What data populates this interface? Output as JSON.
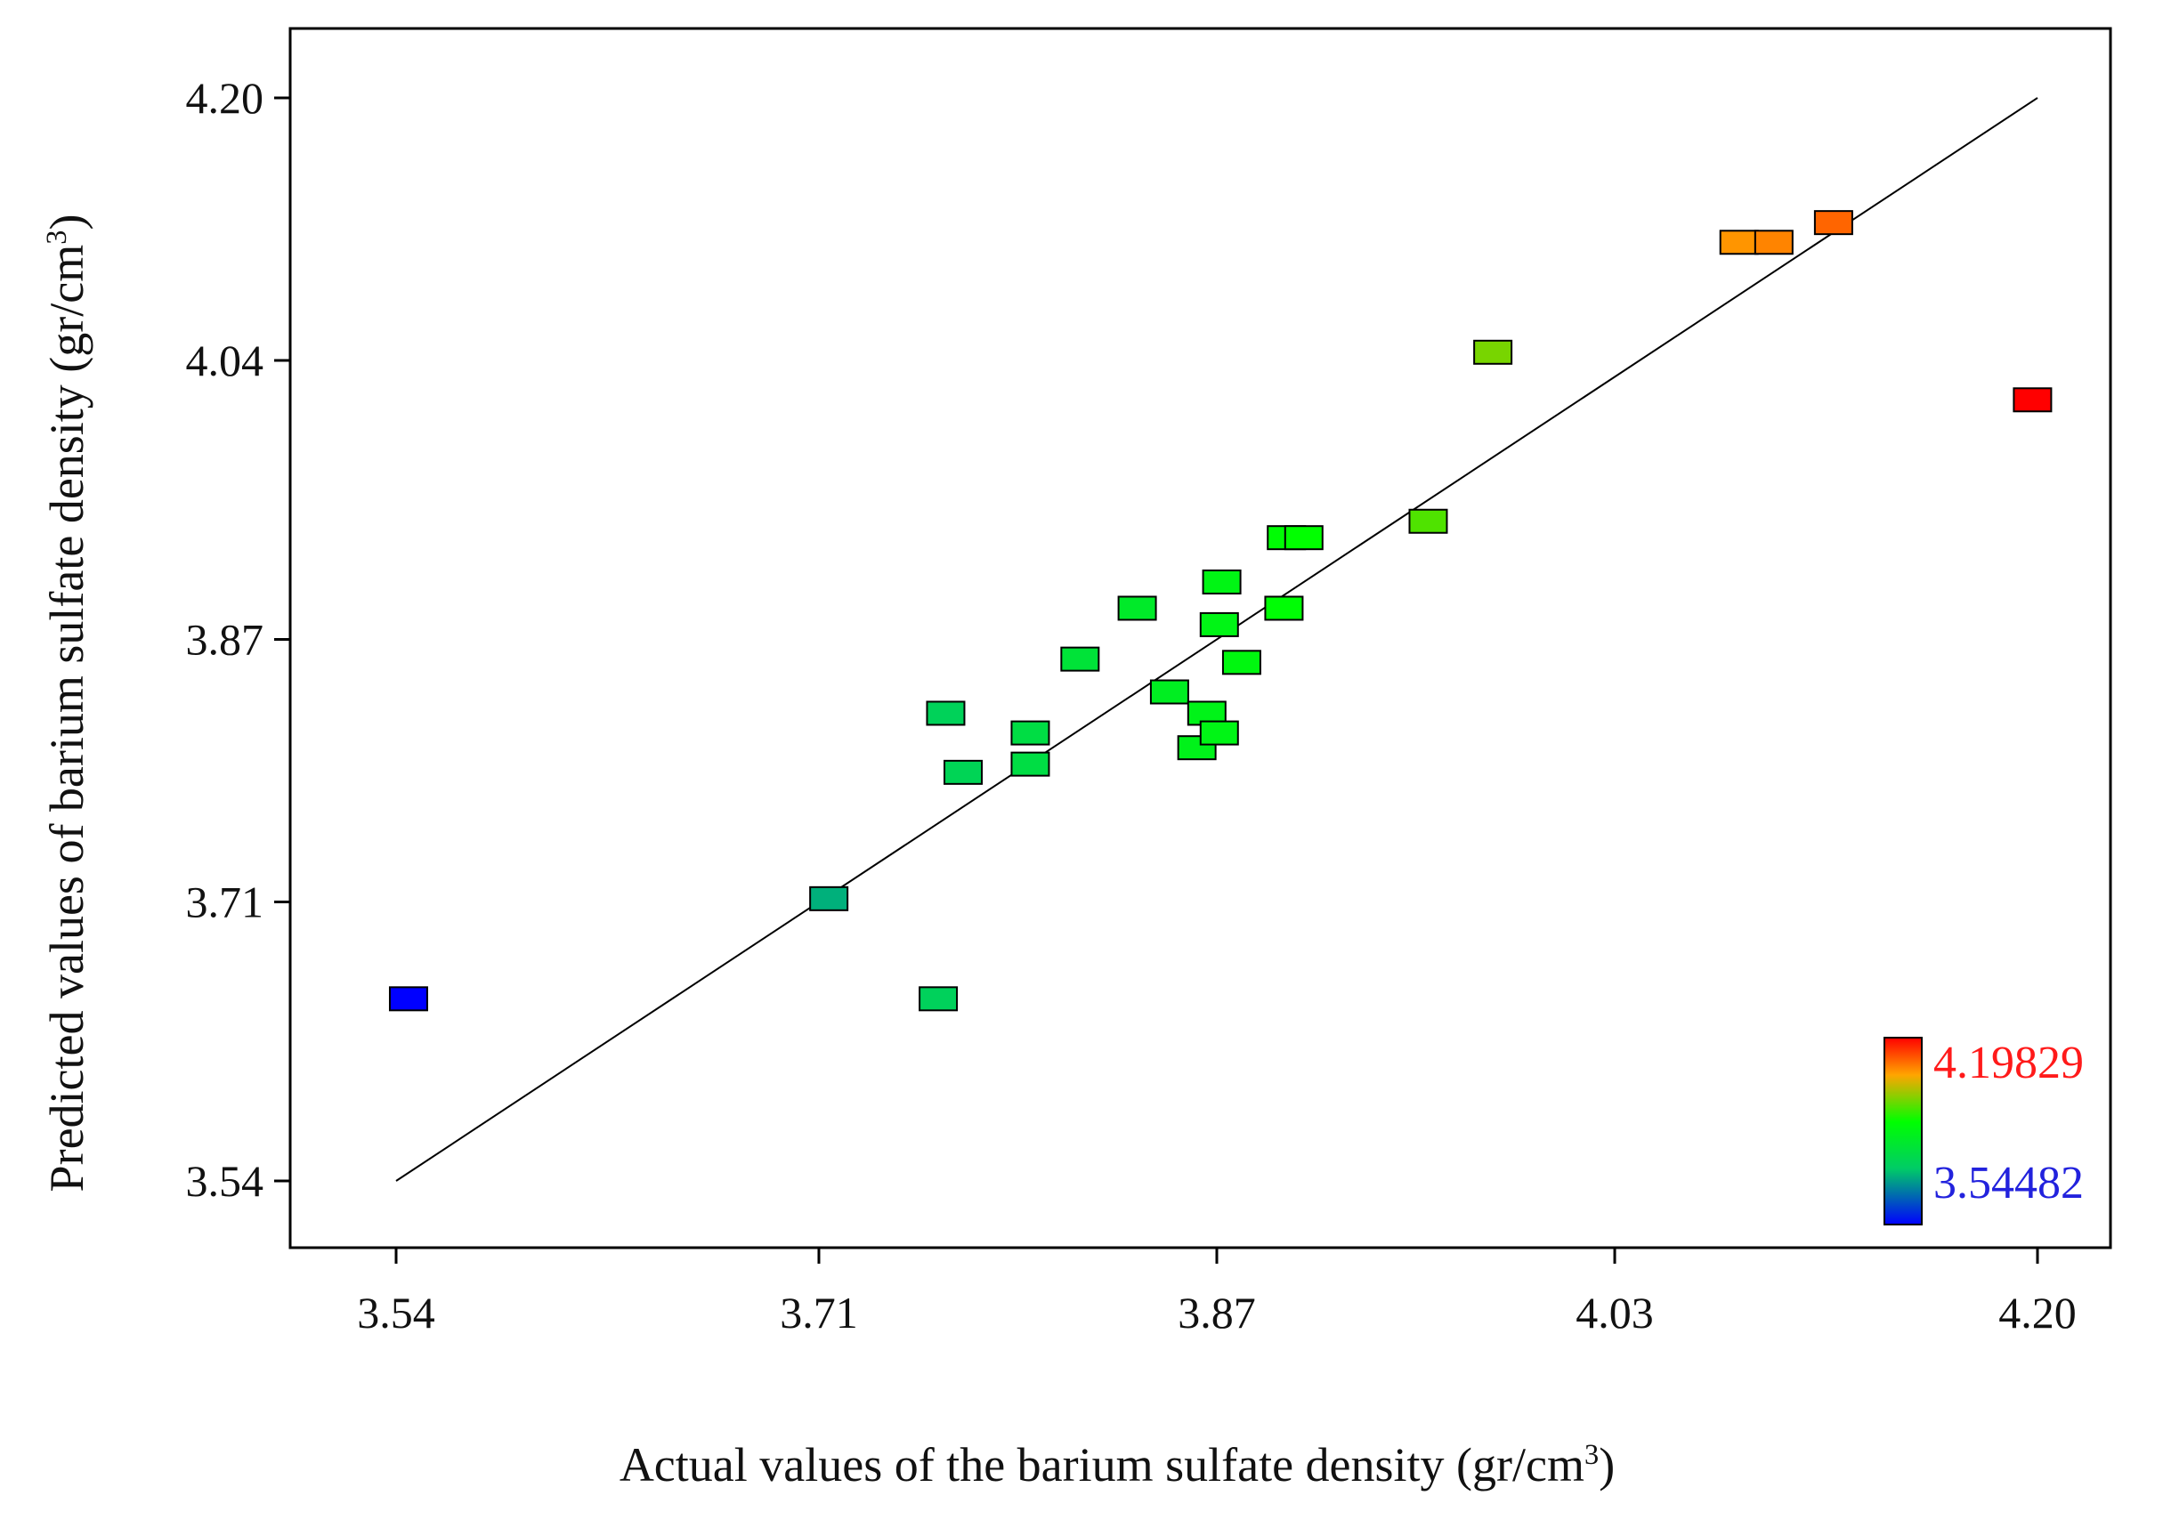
{
  "chart_data": {
    "type": "scatter",
    "title": "",
    "xlabel": "Actual values of the barium sulfate density (gr/cm",
    "xlabel_sup": "3",
    "xlabel_close": ")",
    "ylabel": "Predicted values of barium sulfate density (gr/cm",
    "ylabel_sup": "3",
    "ylabel_close": ")",
    "xlim": [
      3.5,
      4.23
    ],
    "ylim": [
      3.51,
      4.24
    ],
    "x_ticks": [
      3.54,
      3.71,
      3.87,
      4.03,
      4.2
    ],
    "x_tick_labels": [
      "3.54",
      "3.71",
      "3.87",
      "4.03",
      "4.20"
    ],
    "y_ticks": [
      3.54,
      3.71,
      3.87,
      4.04,
      4.2
    ],
    "y_tick_labels": [
      "3.54",
      "3.71",
      "3.87",
      "4.04",
      "4.20"
    ],
    "reference_line": {
      "x": [
        3.54,
        4.2
      ],
      "y": [
        3.54,
        4.2
      ]
    },
    "colorbar": {
      "max_label": "4.19829",
      "min_label": "3.54482",
      "max": 4.19829,
      "min": 3.54482,
      "colors": [
        "#0000ff",
        "#00cc66",
        "#00ff00",
        "#ffa500",
        "#ff0000"
      ]
    },
    "points": [
      {
        "x": 3.545,
        "y": 3.651
      },
      {
        "x": 3.714,
        "y": 3.712
      },
      {
        "x": 3.758,
        "y": 3.651
      },
      {
        "x": 3.761,
        "y": 3.825
      },
      {
        "x": 3.768,
        "y": 3.789
      },
      {
        "x": 3.795,
        "y": 3.813
      },
      {
        "x": 3.795,
        "y": 3.794
      },
      {
        "x": 3.815,
        "y": 3.858
      },
      {
        "x": 3.838,
        "y": 3.889
      },
      {
        "x": 3.851,
        "y": 3.838
      },
      {
        "x": 3.862,
        "y": 3.804
      },
      {
        "x": 3.866,
        "y": 3.825
      },
      {
        "x": 3.871,
        "y": 3.813
      },
      {
        "x": 3.871,
        "y": 3.879
      },
      {
        "x": 3.872,
        "y": 3.905
      },
      {
        "x": 3.88,
        "y": 3.856
      },
      {
        "x": 3.897,
        "y": 3.889
      },
      {
        "x": 3.898,
        "y": 3.932
      },
      {
        "x": 3.905,
        "y": 3.932
      },
      {
        "x": 3.955,
        "y": 3.942
      },
      {
        "x": 3.981,
        "y": 4.045
      },
      {
        "x": 4.08,
        "y": 4.112
      },
      {
        "x": 4.094,
        "y": 4.112
      },
      {
        "x": 4.118,
        "y": 4.124
      },
      {
        "x": 4.198,
        "y": 4.016
      }
    ]
  }
}
